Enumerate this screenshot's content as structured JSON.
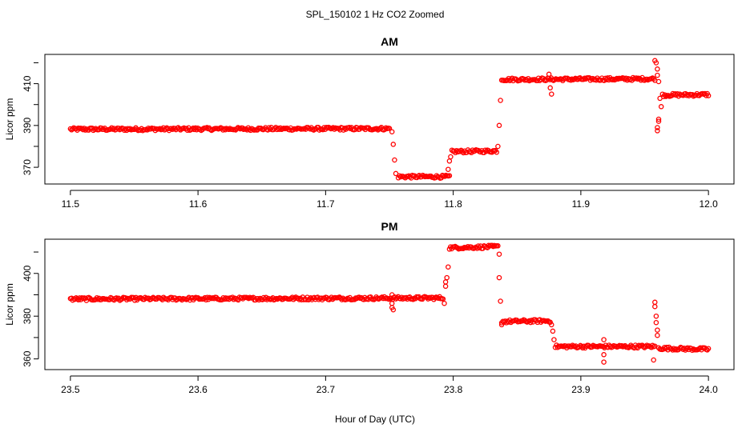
{
  "figure": {
    "title": "SPL_150102  1 Hz CO2 Zoomed",
    "xlabel": "Hour of Day (UTC)",
    "point_color": "#ff0000"
  },
  "chart_data": [
    {
      "type": "scatter",
      "title": "AM",
      "xlabel": "",
      "ylabel": "Licor ppm",
      "xlim": [
        11.48,
        12.02
      ],
      "ylim": [
        362,
        424
      ],
      "xticks": [
        "11.5",
        "11.6",
        "11.7",
        "11.8",
        "11.9",
        "12.0"
      ],
      "yticks": [
        "370",
        "390",
        "410"
      ],
      "series": [
        {
          "points_dense": [
            [
              11.5,
              388.2
            ],
            [
              11.75,
              388.5
            ],
            [
              11.757,
              365.5
            ],
            [
              11.797,
              365.5
            ],
            [
              11.799,
              377.5
            ],
            [
              11.834,
              377.8
            ],
            [
              11.838,
              412.0
            ],
            [
              11.958,
              412.3
            ],
            [
              11.964,
              404.5
            ],
            [
              12.0,
              404.8
            ]
          ],
          "points_sparse": [
            [
              11.752,
              387
            ],
            [
              11.753,
              381
            ],
            [
              11.754,
              373.5
            ],
            [
              11.755,
              367
            ],
            [
              11.796,
              369
            ],
            [
              11.797,
              373
            ],
            [
              11.798,
              375
            ],
            [
              11.835,
              380
            ],
            [
              11.836,
              390
            ],
            [
              11.837,
              402
            ],
            [
              11.875,
              414.5
            ],
            [
              11.876,
              408
            ],
            [
              11.877,
              405
            ],
            [
              11.958,
              421
            ],
            [
              11.959,
              420
            ],
            [
              11.96,
              417
            ],
            [
              11.96,
              414
            ],
            [
              11.961,
              411
            ],
            [
              11.961,
              393
            ],
            [
              11.961,
              392
            ],
            [
              11.96,
              389
            ],
            [
              11.96,
              387.5
            ],
            [
              11.962,
              403
            ],
            [
              11.963,
              399
            ]
          ]
        }
      ]
    },
    {
      "type": "scatter",
      "title": "PM",
      "xlabel": "Hour of Day (UTC)",
      "ylabel": "Licor ppm",
      "xlim": [
        23.48,
        24.02
      ],
      "ylim": [
        355,
        416
      ],
      "xticks": [
        "23.5",
        "23.6",
        "23.7",
        "23.8",
        "23.9",
        "24.0"
      ],
      "yticks": [
        "360",
        "380",
        "400"
      ],
      "series": [
        {
          "points_dense": [
            [
              23.5,
              388.0
            ],
            [
              23.792,
              388.5
            ],
            [
              23.797,
              412.0
            ],
            [
              23.835,
              412.5
            ],
            [
              23.838,
              377.5
            ],
            [
              23.876,
              377.8
            ],
            [
              23.88,
              365.8
            ],
            [
              23.958,
              365.8
            ],
            [
              23.961,
              365.0
            ],
            [
              24.0,
              364.5
            ]
          ],
          "points_sparse": [
            [
              23.752,
              390
            ],
            [
              23.752,
              386
            ],
            [
              23.752,
              384
            ],
            [
              23.753,
              383
            ],
            [
              23.793,
              386
            ],
            [
              23.794,
              394
            ],
            [
              23.794,
              396
            ],
            [
              23.795,
              398
            ],
            [
              23.796,
              403
            ],
            [
              23.836,
              409
            ],
            [
              23.836,
              398
            ],
            [
              23.837,
              387
            ],
            [
              23.838,
              376
            ],
            [
              23.877,
              376
            ],
            [
              23.878,
              373
            ],
            [
              23.879,
              369
            ],
            [
              23.918,
              369
            ],
            [
              23.918,
              362
            ],
            [
              23.918,
              358.5
            ],
            [
              23.957,
              359.5
            ],
            [
              23.958,
              386.5
            ],
            [
              23.958,
              384.5
            ],
            [
              23.959,
              380
            ],
            [
              23.959,
              377
            ],
            [
              23.96,
              373.5
            ],
            [
              23.96,
              371
            ]
          ]
        }
      ]
    }
  ]
}
